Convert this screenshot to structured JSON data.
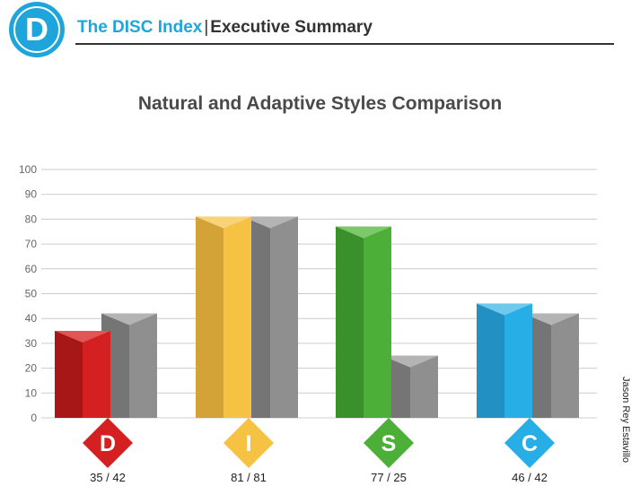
{
  "header": {
    "logo_letter": "D",
    "brand": "The DISC Index",
    "separator": "|",
    "section": "Executive Summary"
  },
  "side_credit": "Jason Rey Estavillo",
  "chart_data": {
    "type": "bar",
    "title": "Natural and Adaptive Styles Comparison",
    "xlabel": "",
    "ylabel": "",
    "ylim": [
      0,
      100
    ],
    "yticks": [
      0,
      10,
      20,
      30,
      40,
      50,
      60,
      70,
      80,
      90,
      100
    ],
    "grid": true,
    "categories": [
      "D",
      "I",
      "S",
      "C"
    ],
    "series": [
      {
        "values": [
          35,
          81,
          77,
          46
        ]
      },
      {
        "values": [
          42,
          81,
          25,
          42
        ]
      }
    ],
    "score_labels": [
      "35 / 42",
      "81 / 81",
      "77 / 25",
      "46 / 42"
    ],
    "colors": {
      "D": {
        "front": "#d42020",
        "side": "#a81717",
        "top": "#e05555"
      },
      "I": {
        "front": "#f6c244",
        "side": "#d4a338",
        "top": "#f8d37a"
      },
      "S": {
        "front": "#4caf37",
        "side": "#3a902a",
        "top": "#7cc86b"
      },
      "C": {
        "front": "#27aee6",
        "side": "#2290c2",
        "top": "#6fc9ef"
      },
      "adaptive": {
        "front": "#8f8f8f",
        "side": "#757575",
        "top": "#b4b4b4"
      },
      "grid": "#cccccc"
    }
  }
}
